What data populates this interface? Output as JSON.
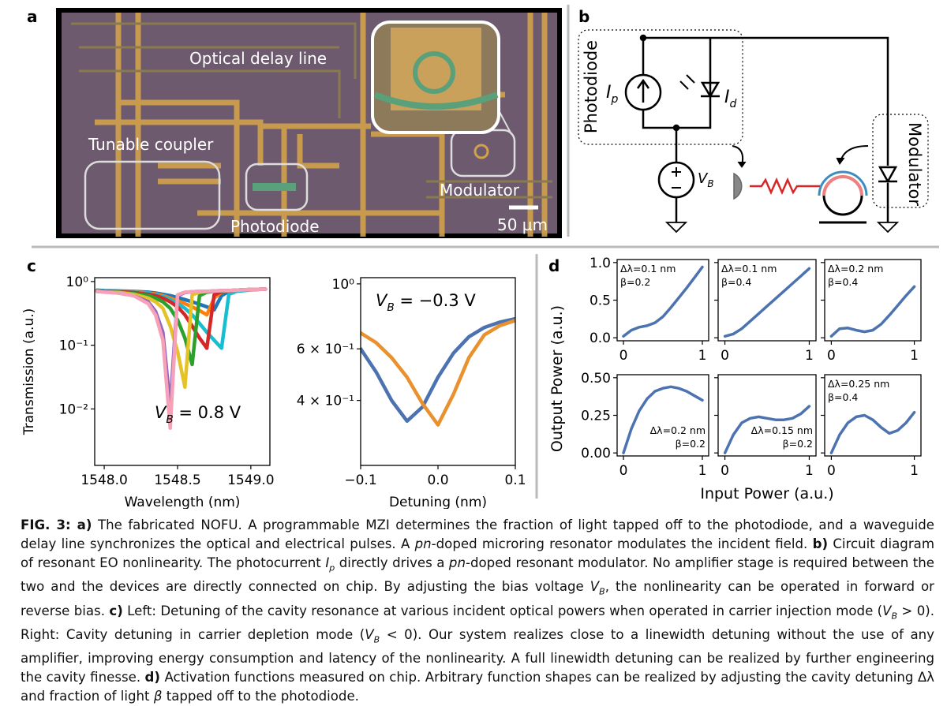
{
  "panel_labels": [
    "a",
    "b",
    "c",
    "d"
  ],
  "panel_a": {
    "labels": [
      "Optical delay line",
      "Tunable coupler",
      "Photodiode",
      "Modulator"
    ],
    "scale_bar": "50 µm"
  },
  "panel_b": {
    "boxes": [
      "Photodiode",
      "Modulator"
    ],
    "symbols": [
      {
        "main": "I",
        "sub": "p"
      },
      {
        "main": "I",
        "sub": "d"
      },
      {
        "main": "V",
        "sub": "B"
      }
    ]
  },
  "panel_d": {
    "ylabel": "Output Power (a.u.)",
    "xlabel": "Input Power (a.u.)"
  },
  "chart_data": [
    {
      "type": "line",
      "log_y": true,
      "xlabel": "Wavelength (nm)",
      "ylabel": "Transmission (a.u.)",
      "annotation": {
        "symbol": "V",
        "sub": "B",
        "text": " = 0.8 V"
      },
      "xlim": [
        1547.935,
        1549.13
      ],
      "ylim": [
        0.0013,
        1.15
      ],
      "xticks": [
        {
          "value": 1548,
          "label": "1548.0"
        },
        {
          "value": 1548.5,
          "label": "1548.5"
        },
        {
          "value": 1549,
          "label": "1549.0"
        }
      ],
      "yticks": [
        {
          "value": 1,
          "label": "10⁰"
        },
        {
          "value": 0.1,
          "label": "10⁻¹"
        },
        {
          "value": 0.01,
          "label": "10⁻²"
        }
      ],
      "x": [
        1547.95,
        1548.0,
        1548.1,
        1548.2,
        1548.3,
        1548.35,
        1548.4,
        1548.45,
        1548.5,
        1548.55,
        1548.6,
        1548.65,
        1548.7,
        1548.75,
        1548.8,
        1548.85,
        1548.9,
        1549.0,
        1549.1
      ],
      "series": [
        {
          "color": "#1f77b4",
          "values": [
            0.73,
            0.72,
            0.71,
            0.7,
            0.68,
            0.66,
            0.63,
            0.6,
            0.56,
            0.52,
            0.48,
            0.44,
            0.4,
            0.36,
            0.6,
            0.7,
            0.73,
            0.75,
            0.76
          ]
        },
        {
          "color": "#ff7f0e",
          "values": [
            0.72,
            0.71,
            0.7,
            0.69,
            0.66,
            0.64,
            0.6,
            0.55,
            0.5,
            0.45,
            0.4,
            0.35,
            0.3,
            0.55,
            0.68,
            0.71,
            0.73,
            0.75,
            0.76
          ]
        },
        {
          "color": "#17becf",
          "values": [
            0.72,
            0.71,
            0.7,
            0.68,
            0.65,
            0.62,
            0.58,
            0.52,
            0.45,
            0.38,
            0.3,
            0.22,
            0.16,
            0.12,
            0.09,
            0.63,
            0.7,
            0.74,
            0.76
          ]
        },
        {
          "color": "#d62728",
          "values": [
            0.71,
            0.7,
            0.69,
            0.67,
            0.63,
            0.6,
            0.55,
            0.48,
            0.4,
            0.3,
            0.2,
            0.13,
            0.09,
            0.62,
            0.69,
            0.71,
            0.73,
            0.75,
            0.76
          ]
        },
        {
          "color": "#2ca02c",
          "values": [
            0.7,
            0.69,
            0.68,
            0.65,
            0.6,
            0.55,
            0.48,
            0.38,
            0.25,
            0.13,
            0.05,
            0.6,
            0.68,
            0.7,
            0.71,
            0.72,
            0.73,
            0.75,
            0.76
          ]
        },
        {
          "color": "#e6c229",
          "values": [
            0.7,
            0.69,
            0.67,
            0.63,
            0.55,
            0.48,
            0.38,
            0.2,
            0.08,
            0.022,
            0.62,
            0.68,
            0.7,
            0.71,
            0.72,
            0.72,
            0.73,
            0.75,
            0.76
          ]
        },
        {
          "color": "#9467bd",
          "values": [
            0.7,
            0.69,
            0.66,
            0.6,
            0.48,
            0.34,
            0.16,
            0.011,
            0.6,
            0.67,
            0.69,
            0.7,
            0.7,
            0.71,
            0.72,
            0.72,
            0.73,
            0.75,
            0.76
          ]
        },
        {
          "color": "#f7a1b8",
          "values": [
            0.7,
            0.68,
            0.66,
            0.6,
            0.45,
            0.3,
            0.12,
            0.005,
            0.62,
            0.68,
            0.69,
            0.7,
            0.7,
            0.71,
            0.72,
            0.72,
            0.73,
            0.75,
            0.76
          ]
        }
      ]
    },
    {
      "type": "line",
      "log_y": true,
      "xlabel": "Detuning (nm)",
      "annotation": {
        "symbol": "V",
        "sub": "B",
        "text": " = −0.3 V"
      },
      "xlim": [
        -0.1,
        0.1
      ],
      "ylim": [
        0.24,
        1.05
      ],
      "xticks": [
        {
          "value": -0.1,
          "label": "−0.1"
        },
        {
          "value": 0,
          "label": "0.0"
        },
        0.1
      ],
      "yticks": [
        {
          "value": 1,
          "label": "10⁰"
        },
        {
          "value": 0.6,
          "label": "6 × 10⁻¹"
        },
        {
          "value": 0.4,
          "label": "4 × 10⁻¹"
        }
      ],
      "x": [
        -0.1,
        -0.08,
        -0.06,
        -0.04,
        -0.02,
        0,
        0.02,
        0.04,
        0.06,
        0.08,
        0.1
      ],
      "series": [
        {
          "color": "#4c72b0",
          "values": [
            0.6,
            0.5,
            0.4,
            0.34,
            0.38,
            0.48,
            0.58,
            0.66,
            0.71,
            0.74,
            0.76
          ]
        },
        {
          "color": "#e8912d",
          "values": [
            0.68,
            0.63,
            0.56,
            0.48,
            0.39,
            0.33,
            0.42,
            0.56,
            0.67,
            0.72,
            0.75
          ]
        }
      ]
    },
    {
      "type": "line",
      "annotation": [
        "Δλ=0.1 nm",
        "β=0.2"
      ],
      "annotation_corner": "top-left",
      "xlim": [
        -0.08,
        1.08
      ],
      "ylim": [
        -0.04,
        1.04
      ],
      "xticks": [
        0,
        1
      ],
      "yticks": [
        {
          "value": 0,
          "label": "0.0"
        },
        {
          "value": 0.5,
          "label": "0.5"
        },
        {
          "value": 1,
          "label": "1.0"
        }
      ],
      "x": [
        0,
        0.1,
        0.2,
        0.3,
        0.4,
        0.5,
        0.6,
        0.7,
        0.8,
        0.9,
        1
      ],
      "series": [
        {
          "color": "#4c72b0",
          "values": [
            0.02,
            0.1,
            0.14,
            0.16,
            0.2,
            0.28,
            0.4,
            0.53,
            0.66,
            0.8,
            0.94
          ]
        }
      ]
    },
    {
      "type": "line",
      "annotation": [
        "Δλ=0.1 nm",
        "β=0.4"
      ],
      "annotation_corner": "top-left",
      "ytick_labels": false,
      "xlim": [
        -0.08,
        1.08
      ],
      "ylim": [
        -0.04,
        1.04
      ],
      "xticks": [
        0,
        1
      ],
      "yticks": [
        0,
        0.5,
        1
      ],
      "x": [
        0,
        0.1,
        0.2,
        0.3,
        0.4,
        0.5,
        0.6,
        0.7,
        0.8,
        0.9,
        1
      ],
      "series": [
        {
          "color": "#4c72b0",
          "values": [
            0.02,
            0.05,
            0.12,
            0.22,
            0.32,
            0.42,
            0.52,
            0.62,
            0.72,
            0.82,
            0.92
          ]
        }
      ]
    },
    {
      "type": "line",
      "annotation": [
        "Δλ=0.2 nm",
        "β=0.4"
      ],
      "annotation_corner": "top-left",
      "ytick_labels": false,
      "xlim": [
        -0.08,
        1.08
      ],
      "ylim": [
        -0.04,
        1.04
      ],
      "xticks": [
        0,
        1
      ],
      "yticks": [
        0,
        0.5,
        1
      ],
      "x": [
        0,
        0.1,
        0.2,
        0.3,
        0.4,
        0.5,
        0.6,
        0.7,
        0.8,
        0.9,
        1
      ],
      "series": [
        {
          "color": "#4c72b0",
          "values": [
            0.02,
            0.12,
            0.13,
            0.1,
            0.08,
            0.1,
            0.18,
            0.3,
            0.43,
            0.56,
            0.68
          ]
        }
      ]
    },
    {
      "type": "line",
      "annotation": [
        "Δλ=0.2 nm",
        "β=0.2"
      ],
      "annotation_corner": "bottom-right",
      "xlim": [
        -0.08,
        1.08
      ],
      "ylim": [
        -0.02,
        0.52
      ],
      "xticks": [
        0,
        1
      ],
      "yticks": [
        {
          "value": 0,
          "label": "0.00"
        },
        {
          "value": 0.25,
          "label": "0.25"
        },
        {
          "value": 0.5,
          "label": "0.50"
        }
      ],
      "x": [
        0,
        0.1,
        0.2,
        0.3,
        0.4,
        0.5,
        0.6,
        0.7,
        0.8,
        0.9,
        1
      ],
      "series": [
        {
          "color": "#4c72b0",
          "values": [
            0,
            0.16,
            0.28,
            0.36,
            0.41,
            0.43,
            0.44,
            0.43,
            0.41,
            0.38,
            0.35
          ]
        }
      ]
    },
    {
      "type": "line",
      "annotation": [
        "Δλ=0.15 nm",
        "β=0.2"
      ],
      "annotation_corner": "bottom-right",
      "ytick_labels": false,
      "xlim": [
        -0.08,
        1.08
      ],
      "ylim": [
        -0.02,
        0.52
      ],
      "xticks": [
        0,
        1
      ],
      "yticks": [
        0,
        0.25,
        0.5
      ],
      "x": [
        0,
        0.1,
        0.2,
        0.3,
        0.4,
        0.5,
        0.6,
        0.7,
        0.8,
        0.9,
        1
      ],
      "series": [
        {
          "color": "#4c72b0",
          "values": [
            0,
            0.12,
            0.2,
            0.23,
            0.24,
            0.23,
            0.22,
            0.22,
            0.23,
            0.26,
            0.31
          ]
        }
      ]
    },
    {
      "type": "line",
      "annotation": [
        "Δλ=0.25 nm",
        "β=0.4"
      ],
      "annotation_corner": "top-left",
      "ytick_labels": false,
      "xlim": [
        -0.08,
        1.08
      ],
      "ylim": [
        -0.02,
        0.52
      ],
      "xticks": [
        0,
        1
      ],
      "yticks": [
        0,
        0.25,
        0.5
      ],
      "x": [
        0,
        0.1,
        0.2,
        0.3,
        0.4,
        0.5,
        0.6,
        0.7,
        0.8,
        0.9,
        1
      ],
      "series": [
        {
          "color": "#4c72b0",
          "values": [
            0,
            0.12,
            0.2,
            0.24,
            0.25,
            0.22,
            0.17,
            0.13,
            0.15,
            0.2,
            0.27
          ]
        }
      ]
    }
  ],
  "caption": [
    {
      "style": "bold",
      "text": "FIG. 3: a)"
    },
    {
      "style": "normal",
      "text": " The fabricated NOFU. A programmable MZI determines the fraction of light tapped off to the photodiode, and a waveguide delay line synchronizes the optical and electrical pulses. A "
    },
    {
      "style": "italic",
      "text": "pn"
    },
    {
      "style": "normal",
      "text": "-doped microring resonator modulates the incident field. "
    },
    {
      "style": "bold",
      "text": "b)"
    },
    {
      "style": "normal",
      "text": " Circuit diagram of resonant EO nonlinearity. The photocurrent "
    },
    {
      "style": "italic",
      "text": "I"
    },
    {
      "style": "sub",
      "text": "p"
    },
    {
      "style": "normal",
      "text": " directly drives a "
    },
    {
      "style": "italic",
      "text": "pn"
    },
    {
      "style": "normal",
      "text": "-doped resonant modulator. No amplifier stage is required between the two and the devices are directly connected on chip. By adjusting the bias voltage "
    },
    {
      "style": "italic",
      "text": "V"
    },
    {
      "style": "sub",
      "text": "B"
    },
    {
      "style": "normal",
      "text": ", the nonlinearity can be operated in forward or reverse bias. "
    },
    {
      "style": "bold",
      "text": "c)"
    },
    {
      "style": "normal",
      "text": " Left: Detuning of the cavity resonance at various incident optical powers when operated in carrier injection mode ("
    },
    {
      "style": "italic",
      "text": "V"
    },
    {
      "style": "sub",
      "text": "B"
    },
    {
      "style": "normal",
      "text": " > 0). Right: Cavity detuning in carrier depletion mode ("
    },
    {
      "style": "italic",
      "text": "V"
    },
    {
      "style": "sub",
      "text": "B"
    },
    {
      "style": "normal",
      "text": " < 0). Our system realizes close to a linewidth detuning without the use of any amplifier, improving energy consumption and latency of the nonlinearity. A full linewidth detuning can be realized by further engineering the cavity finesse. "
    },
    {
      "style": "bold",
      "text": "d)"
    },
    {
      "style": "normal",
      "text": " Activation functions measured on chip. Arbitrary function shapes can be realized by adjusting the cavity detuning Δλ and fraction of light "
    },
    {
      "style": "italic",
      "text": "β"
    },
    {
      "style": "normal",
      "text": " tapped off to the photodiode."
    }
  ]
}
